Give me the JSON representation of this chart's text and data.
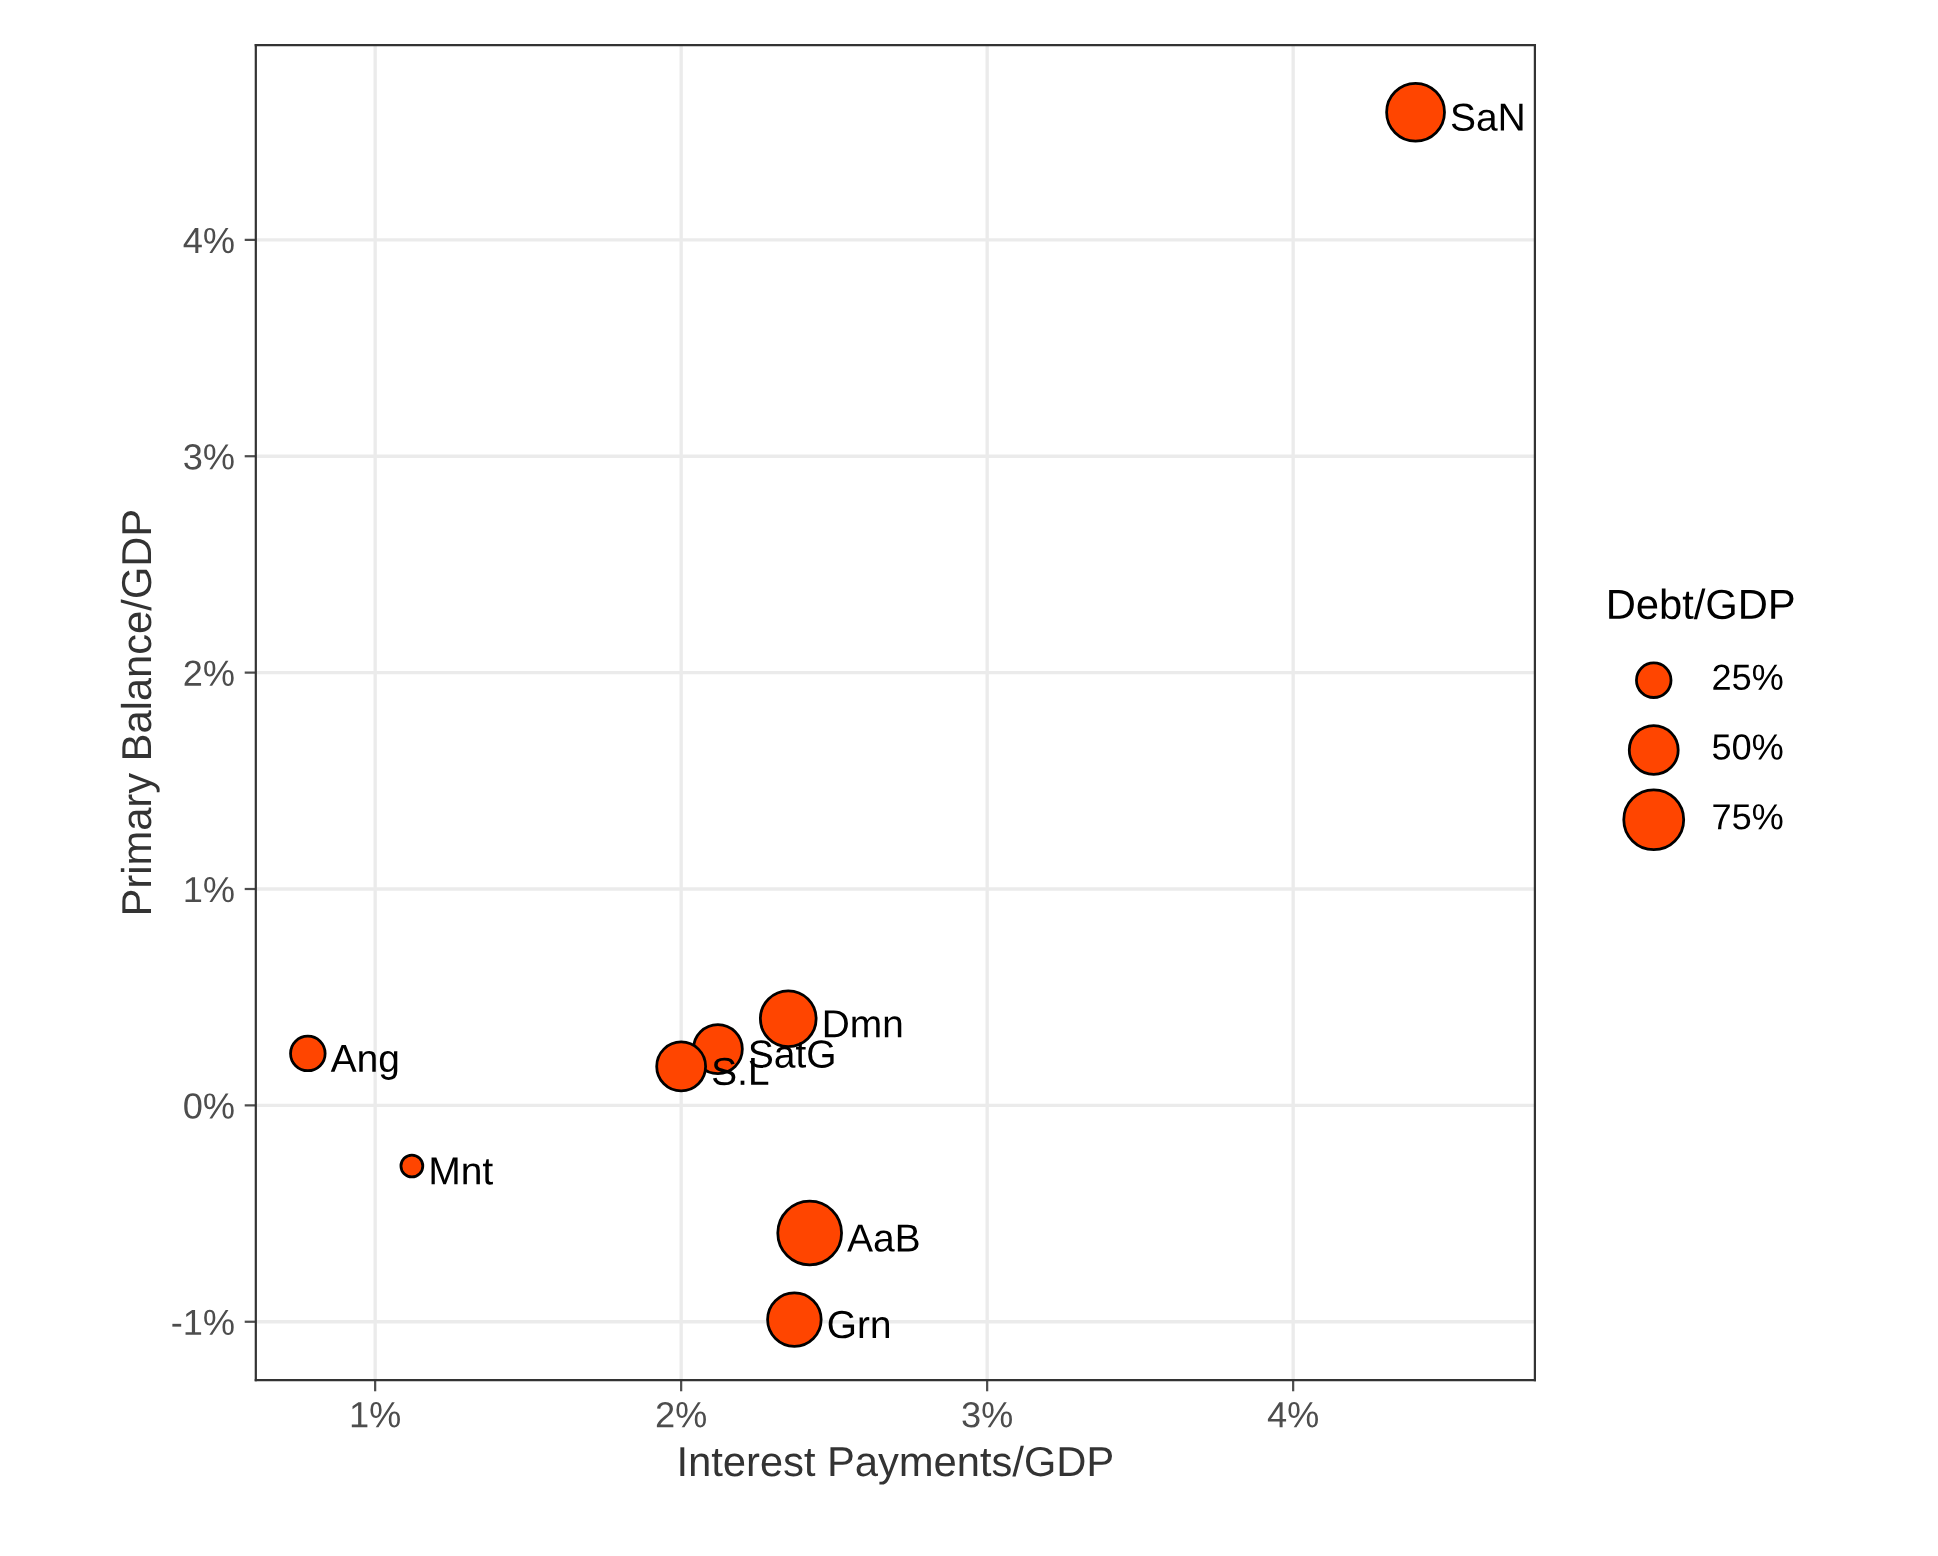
{
  "chart_data": {
    "type": "bubble",
    "xlabel": "Interest Payments/GDP",
    "ylabel": "Primary Balance/GDP",
    "legend_title": "Debt/GDP",
    "x": [
      4.4,
      2.35,
      2.12,
      2.0,
      0.78,
      1.12,
      2.42,
      2.37
    ],
    "series": [
      {
        "color": "#ff4500",
        "values": [
          4.59,
          0.4,
          0.26,
          0.18,
          0.24,
          -0.28,
          -0.59,
          -0.99
        ],
        "sizes": [
          70,
          65,
          50,
          50,
          25,
          10,
          85,
          60
        ]
      }
    ],
    "size_legend": [
      {
        "value": 25,
        "label": "25%"
      },
      {
        "value": 50,
        "label": "50%"
      },
      {
        "value": 75,
        "label": "75%"
      }
    ],
    "annotations": [
      {
        "text": "SaN",
        "x": 4.4,
        "y": 4.59
      },
      {
        "text": "Dmn",
        "x": 2.35,
        "y": 0.4
      },
      {
        "text": "SatG",
        "x": 2.12,
        "y": 0.26
      },
      {
        "text": "S.L",
        "x": 2.0,
        "y": 0.18
      },
      {
        "text": "Ang",
        "x": 0.78,
        "y": 0.24
      },
      {
        "text": "Mnt",
        "x": 1.12,
        "y": -0.28
      },
      {
        "text": "AaB",
        "x": 2.42,
        "y": -0.59
      },
      {
        "text": "Grn",
        "x": 2.37,
        "y": -0.99
      }
    ],
    "xlim": [
      0.61,
      4.79
    ],
    "ylim": [
      -1.27,
      4.9
    ],
    "xticks": [
      {
        "value": 1,
        "label": "1%"
      },
      {
        "value": 2,
        "label": "2%"
      },
      {
        "value": 3,
        "label": "3%"
      },
      {
        "value": 4,
        "label": "4%"
      }
    ],
    "yticks": [
      {
        "value": -1,
        "label": "-1%"
      },
      {
        "value": 0,
        "label": "0%"
      },
      {
        "value": 1,
        "label": "1%"
      },
      {
        "value": 2,
        "label": "2%"
      },
      {
        "value": 3,
        "label": "3%"
      },
      {
        "value": 4,
        "label": "4%"
      }
    ],
    "grid": true,
    "marker": "circle"
  }
}
